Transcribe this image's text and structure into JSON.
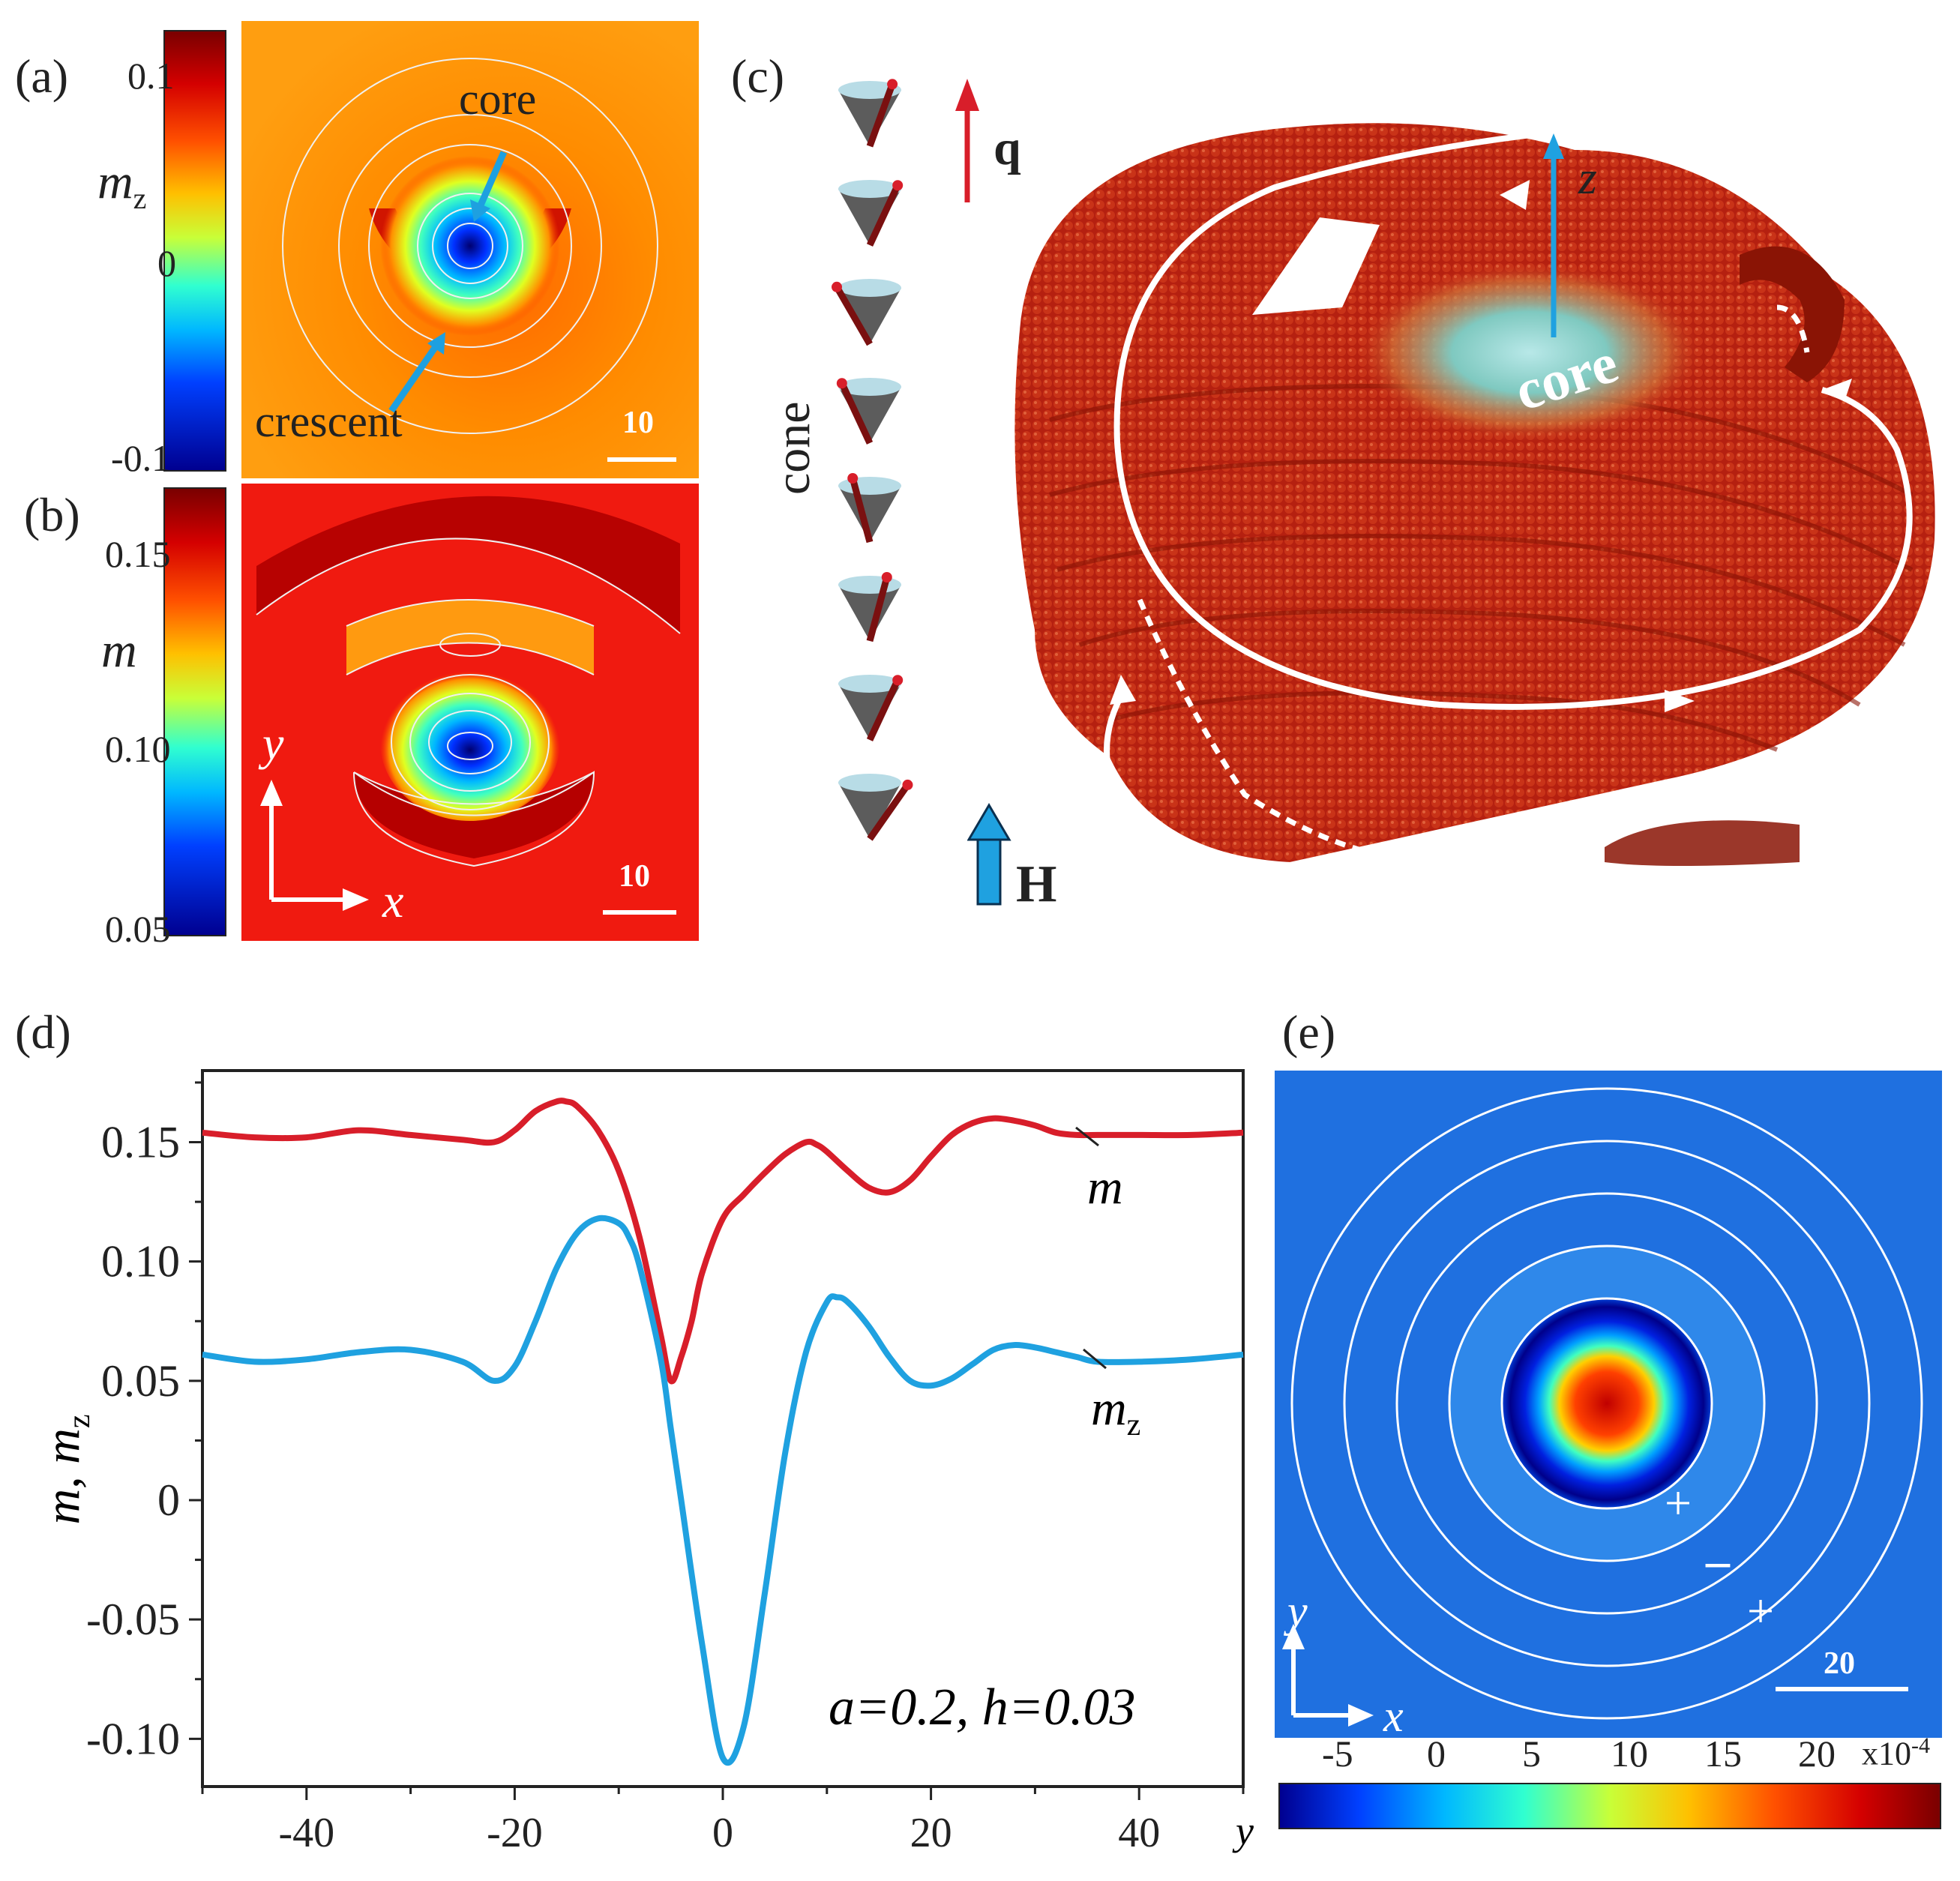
{
  "figure": {
    "panel_labels": [
      "(a)",
      "(b)",
      "(c)",
      "(d)",
      "(e)"
    ],
    "a": {
      "colorbar_label": "m",
      "colorbar_label_sub": "z",
      "colorbar_ticks": [
        "0.1",
        "0",
        "-0.1"
      ],
      "annotations": [
        "core",
        "crescent"
      ],
      "scale_bar": "10"
    },
    "b": {
      "colorbar_label": "m",
      "colorbar_ticks": [
        "0.15",
        "0.10",
        "0.05"
      ],
      "axis_y": "y",
      "axis_x": "x",
      "scale_bar": "10"
    },
    "c": {
      "cone_label": "cone",
      "q_label": "q",
      "z_label": "z",
      "core_label": "core",
      "h_label": "H",
      "cone_count": 8
    },
    "e": {
      "colorbar_ticks": [
        "-5",
        "0",
        "5",
        "10",
        "15",
        "20"
      ],
      "colorbar_exponent": "x10",
      "colorbar_exponent_power": "-4",
      "signs": [
        "+",
        "–",
        "+"
      ],
      "axis_y": "y",
      "axis_x": "x",
      "scale_bar": "20"
    }
  },
  "chart_data": {
    "type": "line",
    "title": "",
    "xlabel": "y",
    "ylabel_main": "m, m",
    "ylabel_sub": "z",
    "xlim": [
      -50,
      50
    ],
    "ylim": [
      -0.12,
      0.18
    ],
    "xticks": [
      -40,
      -20,
      0,
      20,
      40
    ],
    "xtick_labels": [
      "-40",
      "-20",
      "0",
      "20",
      "40"
    ],
    "yticks": [
      0.15,
      0.1,
      0.05,
      0,
      -0.05,
      -0.1
    ],
    "ytick_labels": [
      "0.15",
      "0.10",
      "0.05",
      "0",
      "-0.05",
      "-0.10"
    ],
    "annotation": "a=0.2, h=0.03",
    "series": [
      {
        "name": "m",
        "label_main": "m",
        "label_sub": "",
        "color": "#d81e2a",
        "x": [
          -50,
          -45,
          -40,
          -35,
          -30,
          -25,
          -22,
          -20,
          -18,
          -16,
          -15,
          -14,
          -12,
          -10,
          -8,
          -6,
          -5,
          -4,
          -3,
          -2,
          0,
          2,
          4,
          6,
          8,
          9,
          10,
          12,
          14,
          16,
          18,
          20,
          22,
          24,
          26,
          28,
          30,
          32,
          34,
          36,
          40,
          45,
          50
        ],
        "y": [
          0.154,
          0.152,
          0.152,
          0.155,
          0.153,
          0.151,
          0.15,
          0.155,
          0.163,
          0.167,
          0.167,
          0.165,
          0.155,
          0.138,
          0.11,
          0.07,
          0.05,
          0.06,
          0.075,
          0.095,
          0.118,
          0.128,
          0.137,
          0.145,
          0.15,
          0.149,
          0.146,
          0.138,
          0.131,
          0.129,
          0.134,
          0.144,
          0.153,
          0.158,
          0.16,
          0.159,
          0.157,
          0.154,
          0.153,
          0.153,
          0.153,
          0.153,
          0.154
        ]
      },
      {
        "name": "mz",
        "label_main": "m",
        "label_sub": "z",
        "color": "#1fa1e0",
        "x": [
          -50,
          -45,
          -40,
          -35,
          -30,
          -25,
          -22,
          -20,
          -18,
          -16,
          -14,
          -12,
          -10,
          -9,
          -8,
          -6,
          -5,
          -4,
          -2,
          0,
          2,
          4,
          6,
          8,
          10,
          11,
          12,
          14,
          16,
          18,
          20,
          22,
          24,
          26,
          28,
          30,
          32,
          34,
          36,
          40,
          45,
          50
        ],
        "y": [
          0.061,
          0.058,
          0.059,
          0.062,
          0.063,
          0.058,
          0.05,
          0.056,
          0.075,
          0.097,
          0.112,
          0.118,
          0.116,
          0.11,
          0.098,
          0.06,
          0.03,
          0.0,
          -0.06,
          -0.108,
          -0.095,
          -0.04,
          0.02,
          0.062,
          0.083,
          0.085,
          0.083,
          0.073,
          0.06,
          0.05,
          0.048,
          0.051,
          0.057,
          0.063,
          0.065,
          0.064,
          0.062,
          0.06,
          0.058,
          0.058,
          0.059,
          0.061
        ]
      }
    ]
  }
}
